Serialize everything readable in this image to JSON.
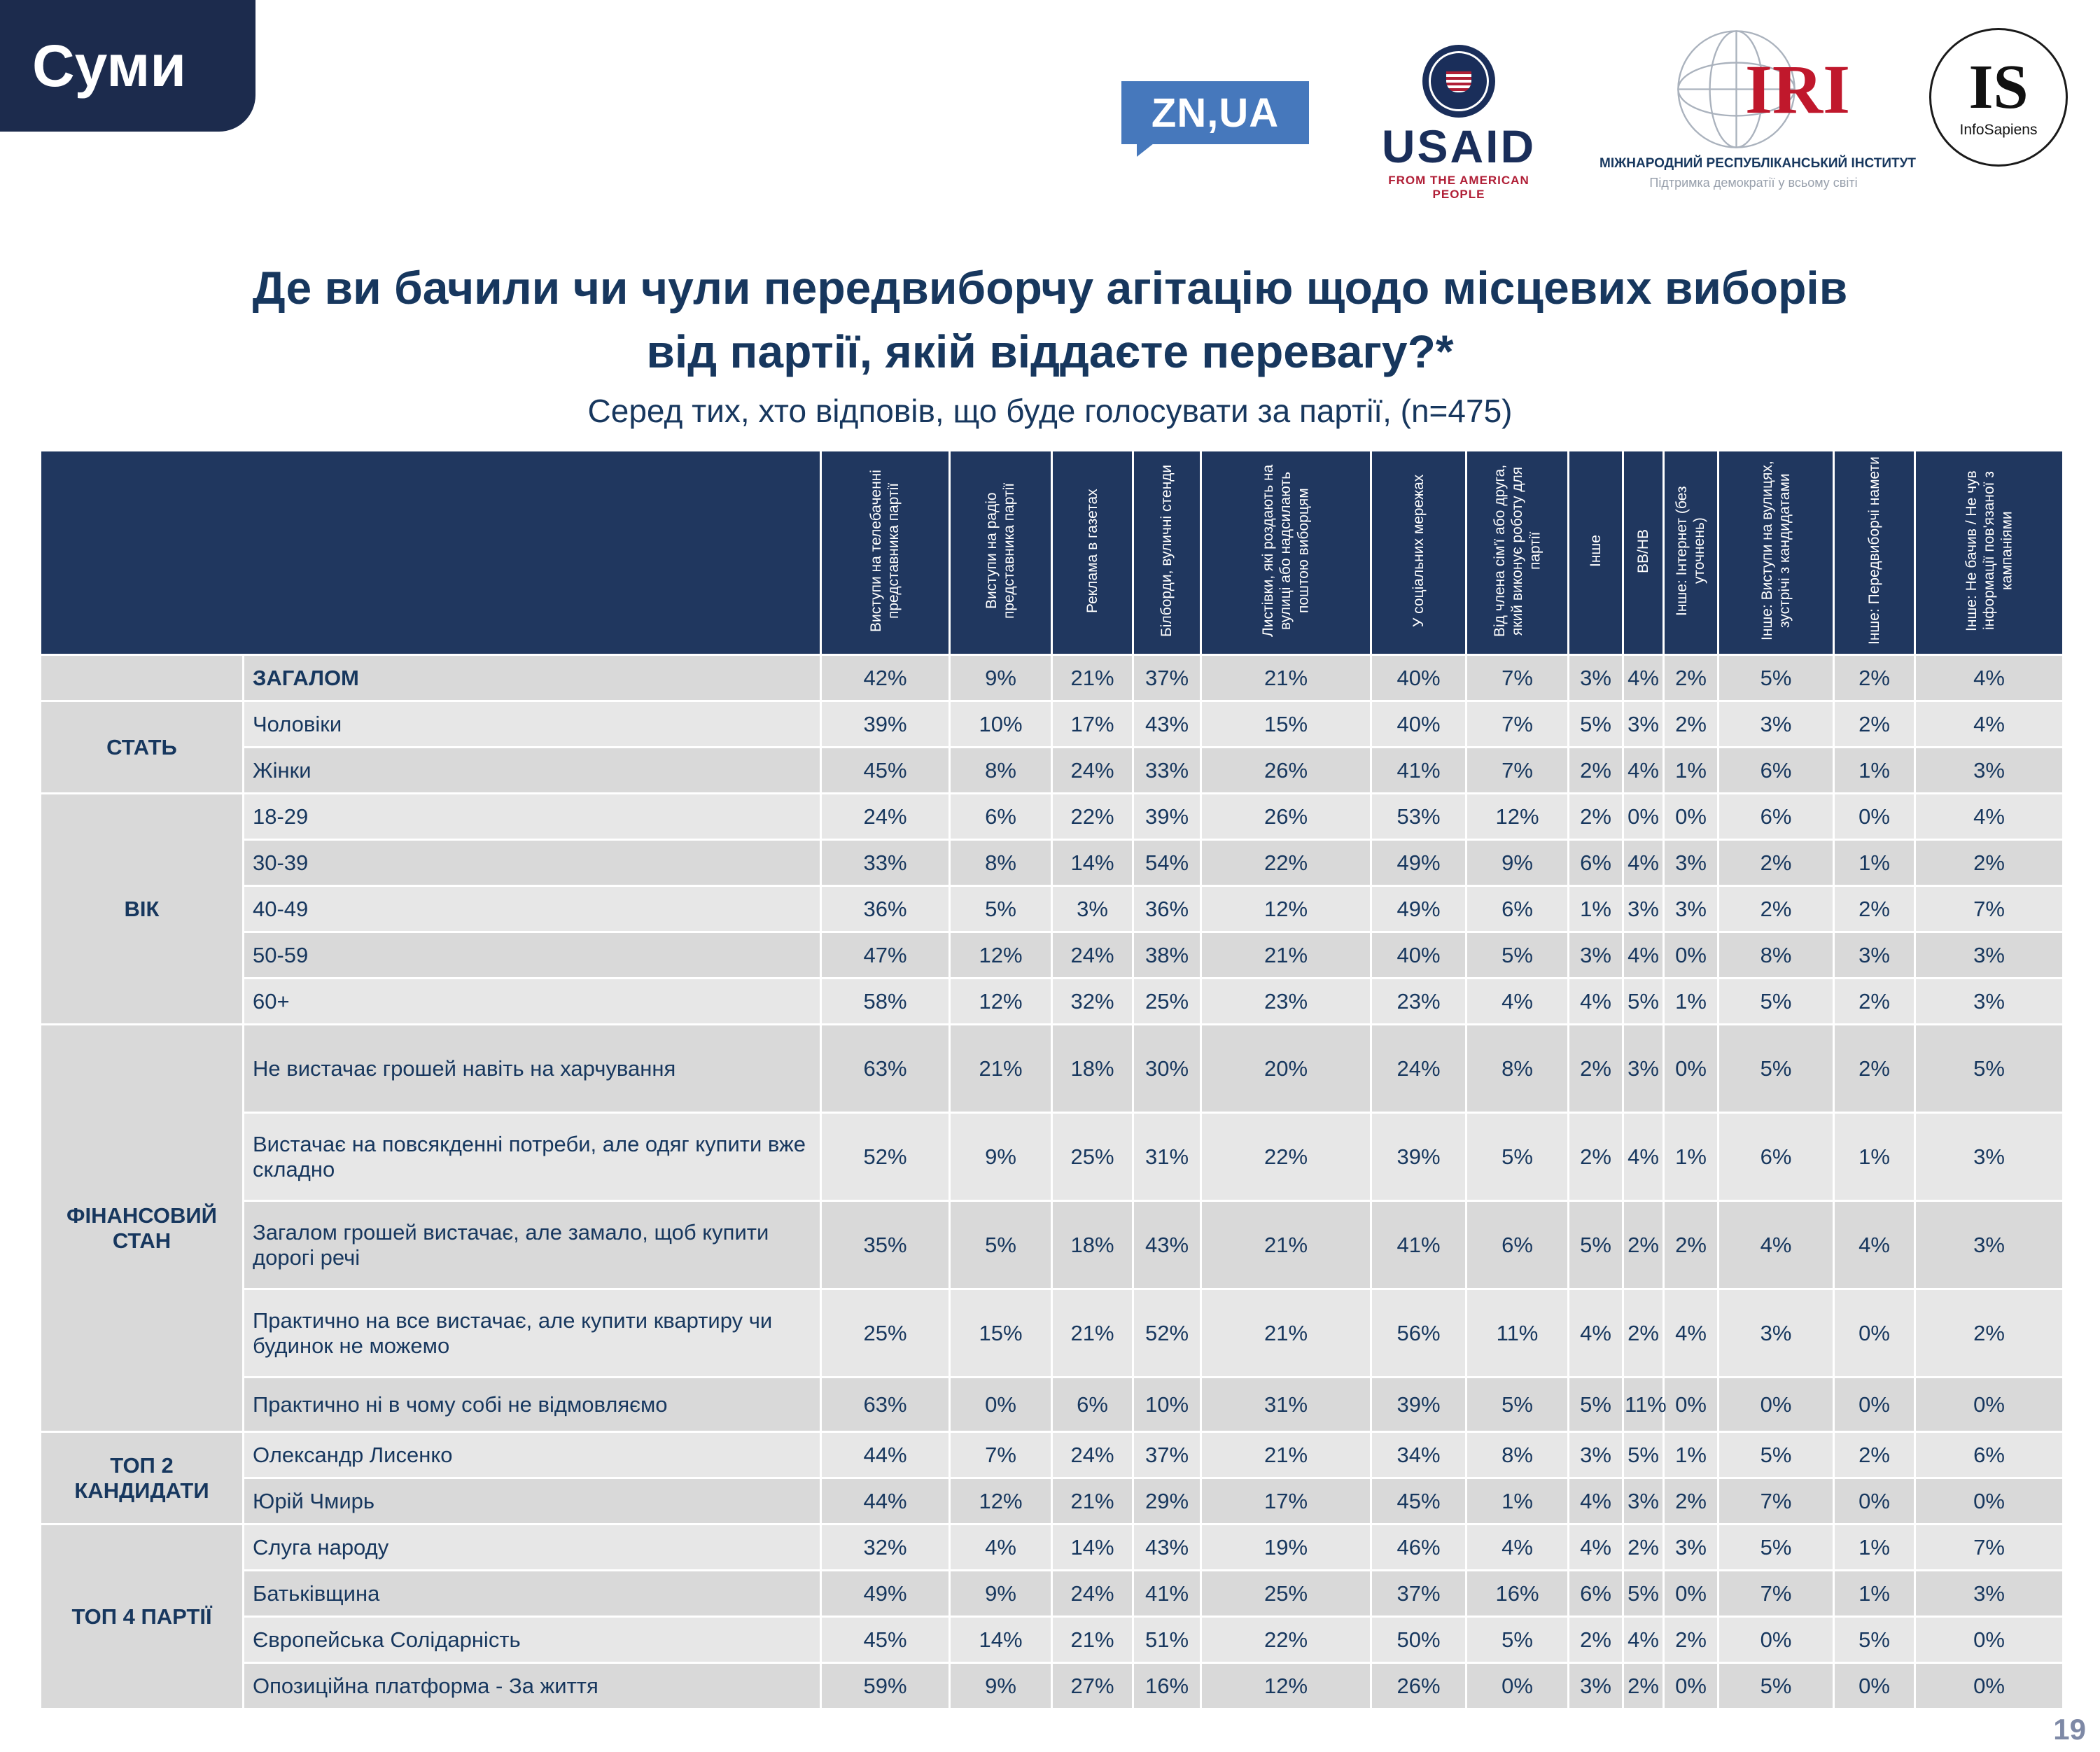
{
  "colors": {
    "navy_text": "#17375e",
    "header_bg": "#20375f",
    "row_stripe_dark": "#d9d9d9",
    "row_stripe_light": "#e7e7e7",
    "znua_blue": "#4678bc",
    "usaid_blue": "#1a2e5a",
    "usaid_red": "#b01e36",
    "iri_red": "#c0182c"
  },
  "header": {
    "region": "Суми"
  },
  "logos": {
    "znua": "ZN,UA",
    "usaid": {
      "name": "USAID",
      "tagline": "FROM THE AMERICAN PEOPLE"
    },
    "iri": {
      "abbr": "IRI",
      "line1": "МІЖНАРОДНИЙ РЕСПУБЛІКАНСЬКИЙ ІНСТИТУТ",
      "line2": "Підтримка демократії у всьому світі"
    },
    "infosapiens": {
      "abbr": "IS",
      "name": "InfoSapiens"
    }
  },
  "title": {
    "line1": "Де ви бачили чи чули передвиборчу агітацію щодо місцевих виборів",
    "line2": "від партії, якій віддаєте перевагу?*",
    "subtitle": "Серед тих, хто відповів, що буде голосувати за партії, (n=475)"
  },
  "footer": {
    "page_number": "19"
  },
  "chart_data": {
    "type": "table",
    "title": "Де ви бачили чи чули передвиборчу агітацію щодо місцевих виборів від партії, якій віддаєте перевагу?*",
    "subtitle": "Серед тих, хто відповів, що буде голосувати за партії, (n=475)",
    "columns": [
      "Виступи на телебаченні представника партії",
      "Виступи на радіо представника партії",
      "Реклама в газетах",
      "Білборди, вуличні стенди",
      "Листівки, які роздають на вулиці або надсилають поштою виборцям",
      "У соціальних мережах",
      "Від члена сім'ї або друга, який виконує роботу для партії",
      "Інше",
      "ВВ/НВ",
      "Інше: Інтернет (без уточнень)",
      "Інше: Виступи на вулицях, зустрічі з кандидатами",
      "Інше: Передвиборчі намети",
      "Інше: Не бачив / Не чув інформації пов'язаної з кампаніями"
    ],
    "row_groups": [
      {
        "group": "",
        "rows": [
          {
            "label": "ЗАГАЛОМ",
            "values": [
              "42%",
              "9%",
              "21%",
              "37%",
              "21%",
              "40%",
              "7%",
              "3%",
              "4%",
              "2%",
              "5%",
              "2%",
              "4%"
            ]
          }
        ]
      },
      {
        "group": "СТАТЬ",
        "rows": [
          {
            "label": "Чоловіки",
            "values": [
              "39%",
              "10%",
              "17%",
              "43%",
              "15%",
              "40%",
              "7%",
              "5%",
              "3%",
              "2%",
              "3%",
              "2%",
              "4%"
            ]
          },
          {
            "label": "Жінки",
            "values": [
              "45%",
              "8%",
              "24%",
              "33%",
              "26%",
              "41%",
              "7%",
              "2%",
              "4%",
              "1%",
              "6%",
              "1%",
              "3%"
            ]
          }
        ]
      },
      {
        "group": "ВІК",
        "rows": [
          {
            "label": "18-29",
            "values": [
              "24%",
              "6%",
              "22%",
              "39%",
              "26%",
              "53%",
              "12%",
              "2%",
              "0%",
              "0%",
              "6%",
              "0%",
              "4%"
            ]
          },
          {
            "label": "30-39",
            "values": [
              "33%",
              "8%",
              "14%",
              "54%",
              "22%",
              "49%",
              "9%",
              "6%",
              "4%",
              "3%",
              "2%",
              "1%",
              "2%"
            ]
          },
          {
            "label": "40-49",
            "values": [
              "36%",
              "5%",
              "3%",
              "36%",
              "12%",
              "49%",
              "6%",
              "1%",
              "3%",
              "3%",
              "2%",
              "2%",
              "7%"
            ]
          },
          {
            "label": "50-59",
            "values": [
              "47%",
              "12%",
              "24%",
              "38%",
              "21%",
              "40%",
              "5%",
              "3%",
              "4%",
              "0%",
              "8%",
              "3%",
              "3%"
            ]
          },
          {
            "label": "60+",
            "values": [
              "58%",
              "12%",
              "32%",
              "25%",
              "23%",
              "23%",
              "4%",
              "4%",
              "5%",
              "1%",
              "5%",
              "2%",
              "3%"
            ]
          }
        ]
      },
      {
        "group": "ФІНАНСОВИЙ СТАН",
        "rows": [
          {
            "label": "Не вистачає грошей навіть на харчування",
            "values": [
              "63%",
              "21%",
              "18%",
              "30%",
              "20%",
              "24%",
              "8%",
              "2%",
              "3%",
              "0%",
              "5%",
              "2%",
              "5%"
            ]
          },
          {
            "label": "Вистачає на повсякденні потреби, але одяг купити вже складно",
            "values": [
              "52%",
              "9%",
              "25%",
              "31%",
              "22%",
              "39%",
              "5%",
              "2%",
              "4%",
              "1%",
              "6%",
              "1%",
              "3%"
            ]
          },
          {
            "label": "Загалом грошей вистачає, але замало, щоб купити дорогі речі",
            "values": [
              "35%",
              "5%",
              "18%",
              "43%",
              "21%",
              "41%",
              "6%",
              "5%",
              "2%",
              "2%",
              "4%",
              "4%",
              "3%"
            ]
          },
          {
            "label": "Практично на все вистачає, але купити квартиру чи будинок не можемо",
            "values": [
              "25%",
              "15%",
              "21%",
              "52%",
              "21%",
              "56%",
              "11%",
              "4%",
              "2%",
              "4%",
              "3%",
              "0%",
              "2%"
            ]
          },
          {
            "label": "Практично ні в чому собі не відмовляємо",
            "values": [
              "63%",
              "0%",
              "6%",
              "10%",
              "31%",
              "39%",
              "5%",
              "5%",
              "11%",
              "0%",
              "0%",
              "0%",
              "0%"
            ]
          }
        ]
      },
      {
        "group": "ТОП 2 КАНДИДАТИ",
        "rows": [
          {
            "label": "Олександр Лисенко",
            "values": [
              "44%",
              "7%",
              "24%",
              "37%",
              "21%",
              "34%",
              "8%",
              "3%",
              "5%",
              "1%",
              "5%",
              "2%",
              "6%"
            ]
          },
          {
            "label": "Юрій Чмирь",
            "values": [
              "44%",
              "12%",
              "21%",
              "29%",
              "17%",
              "45%",
              "1%",
              "4%",
              "3%",
              "2%",
              "7%",
              "0%",
              "0%"
            ]
          }
        ]
      },
      {
        "group": "ТОП 4 ПАРТІЇ",
        "rows": [
          {
            "label": "Слуга народу",
            "values": [
              "32%",
              "4%",
              "14%",
              "43%",
              "19%",
              "46%",
              "4%",
              "4%",
              "2%",
              "3%",
              "5%",
              "1%",
              "7%"
            ]
          },
          {
            "label": "Батьківщина",
            "values": [
              "49%",
              "9%",
              "24%",
              "41%",
              "25%",
              "37%",
              "16%",
              "6%",
              "5%",
              "0%",
              "7%",
              "1%",
              "3%"
            ]
          },
          {
            "label": "Європейська Солідарність",
            "values": [
              "45%",
              "14%",
              "21%",
              "51%",
              "22%",
              "50%",
              "5%",
              "2%",
              "4%",
              "2%",
              "0%",
              "5%",
              "0%"
            ]
          },
          {
            "label": "Опозиційна платформа - За життя",
            "values": [
              "59%",
              "9%",
              "27%",
              "16%",
              "12%",
              "26%",
              "0%",
              "3%",
              "2%",
              "0%",
              "5%",
              "0%",
              "0%"
            ]
          }
        ]
      }
    ]
  }
}
